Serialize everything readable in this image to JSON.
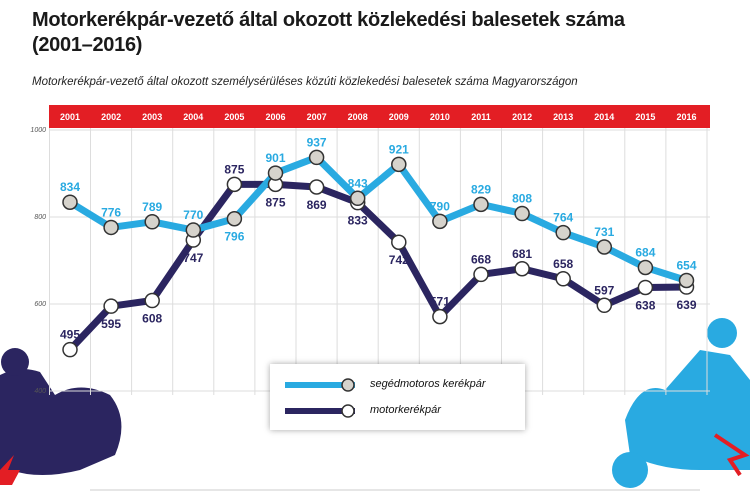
{
  "title_line1": "Motorkerékpár-vezető által okozott közlekedési balesetek száma",
  "title_line2": "(2001–2016)",
  "subtitle": "Motorkerékpár-vezető által okozott személysérüléses közúti közlekedési balesetek száma Magyarországon",
  "chart_data": {
    "type": "line",
    "title": "Motorkerékpár-vezető által okozott közlekedési balesetek száma (2001–2016)",
    "categories": [
      "2001",
      "2002",
      "2003",
      "2004",
      "2005",
      "2006",
      "2007",
      "2008",
      "2009",
      "2010",
      "2011",
      "2012",
      "2013",
      "2014",
      "2015",
      "2016"
    ],
    "ylim": [
      400,
      1000
    ],
    "yticks": [
      "1000",
      "800",
      "600",
      "400"
    ],
    "grid": true,
    "legend_placement": "bottom-center",
    "series": [
      {
        "name": "segédmotoros kerékpár",
        "color": "#29aae1",
        "values": [
          834,
          776,
          789,
          770,
          796,
          901,
          937,
          843,
          921,
          790,
          829,
          808,
          764,
          731,
          684,
          654
        ]
      },
      {
        "name": "motorkerékpár",
        "color": "#2b2560",
        "values": [
          495,
          595,
          608,
          747,
          875,
          875,
          869,
          833,
          742,
          571,
          668,
          681,
          658,
          597,
          638,
          639
        ]
      }
    ]
  },
  "colors": {
    "header": "#e31e24",
    "blue": "#29aae1",
    "navy": "#2b2560"
  }
}
